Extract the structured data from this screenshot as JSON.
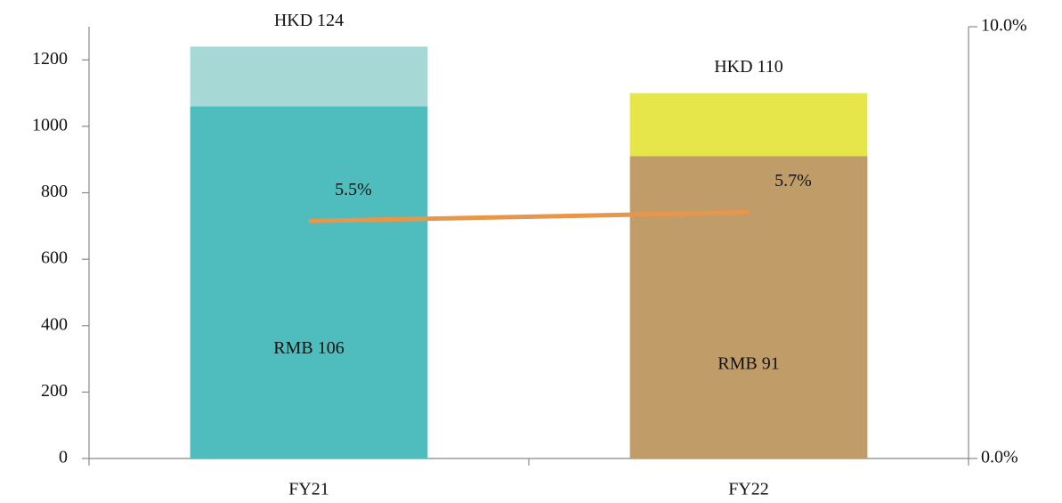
{
  "chart_data": {
    "type": "bar",
    "stacked": true,
    "categories": [
      "FY21",
      "FY22"
    ],
    "series": [
      {
        "colors": [
          "#4fbdbd",
          "#c09c68"
        ],
        "values": [
          1060,
          910
        ],
        "value_labels": [
          "RMB 106",
          "RMB 91"
        ]
      },
      {
        "colors": [
          "#a6d9d5",
          "#e6e64a"
        ],
        "values": [
          180,
          190
        ]
      },
      {
        "type": "line",
        "axis": "y2",
        "color": "#e8964a",
        "values": [
          5.5,
          5.7
        ],
        "value_labels": [
          "5.5%",
          "5.7%"
        ]
      }
    ],
    "total_labels": [
      "HKD 124",
      "HKD 110"
    ],
    "ylim": [
      0,
      1300
    ],
    "yticks": [
      0,
      200,
      400,
      600,
      800,
      1000,
      1200
    ],
    "y2lim": [
      0,
      10
    ],
    "y2ticks": [
      {
        "value": 0,
        "label": "0.0%"
      },
      {
        "value": 10,
        "label": "10.0%"
      }
    ]
  }
}
